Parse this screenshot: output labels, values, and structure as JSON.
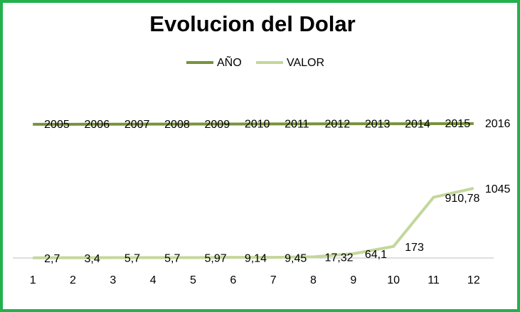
{
  "chart_data": {
    "type": "line",
    "title": "Evolucion del Dolar",
    "categories": [
      "1",
      "2",
      "3",
      "4",
      "5",
      "6",
      "7",
      "8",
      "9",
      "10",
      "11",
      "12"
    ],
    "series": [
      {
        "name": "AÑO",
        "color": "#77933c",
        "values": [
          2005,
          2006,
          2007,
          2008,
          2009,
          2010,
          2011,
          2012,
          2013,
          2014,
          2015,
          2016
        ]
      },
      {
        "name": "VALOR",
        "color": "#c4d79b",
        "values": [
          2.7,
          3.4,
          5.7,
          5.7,
          5.97,
          9.14,
          9.45,
          17.32,
          64.1,
          173,
          910.78,
          1045
        ],
        "value_labels": [
          "2,7",
          "3,4",
          "5,7",
          "5,7",
          "5,97",
          "9,14",
          "9,45",
          "17,32",
          "64,1",
          "173",
          "910,78",
          "1045"
        ]
      }
    ],
    "ylim": [
      0,
      2500
    ],
    "legend": "top"
  }
}
